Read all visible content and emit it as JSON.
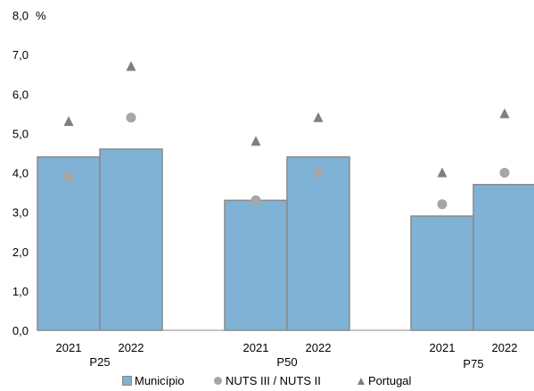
{
  "chart_data": {
    "type": "bar",
    "ylabel": "%",
    "ylim": [
      0,
      8
    ],
    "yticks": [
      "0,0",
      "1,0",
      "2,0",
      "3,0",
      "4,0",
      "5,0",
      "6,0",
      "7,0",
      "8,0"
    ],
    "groups": [
      {
        "label": "P25",
        "categories": [
          "2021",
          "2022"
        ]
      },
      {
        "label": "P50",
        "categories": [
          "2021",
          "2022"
        ]
      },
      {
        "label": "P75",
        "categories": [
          "2021",
          "2022"
        ]
      }
    ],
    "series": [
      {
        "name": "Município",
        "kind": "bar",
        "color": "#7fb2d4",
        "values": [
          4.4,
          4.6,
          3.3,
          4.4,
          2.9,
          3.7
        ]
      },
      {
        "name": "NUTS III / NUTS II",
        "kind": "circle",
        "color": "#a6a6a6",
        "values": [
          3.9,
          5.4,
          3.3,
          4.0,
          3.2,
          4.0
        ]
      },
      {
        "name": "Portugal",
        "kind": "triangle",
        "color": "#7f7f7f",
        "values": [
          5.3,
          6.7,
          4.8,
          5.4,
          4.0,
          5.5
        ]
      }
    ],
    "legend_position": "bottom"
  }
}
